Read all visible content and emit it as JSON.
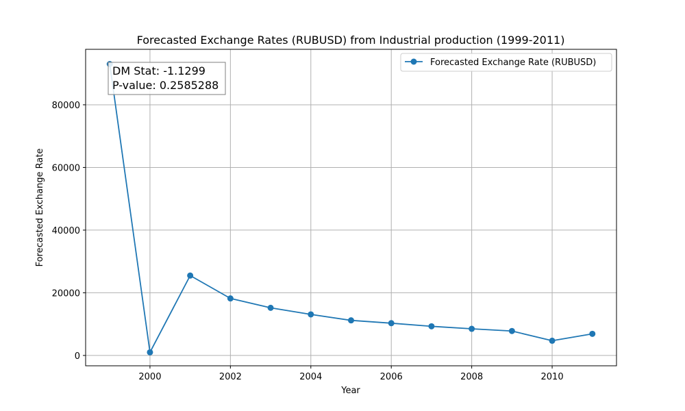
{
  "chart_data": {
    "type": "line",
    "title": "Forecasted Exchange Rates (RUBUSD) from Industrial production (1999-2011)",
    "xlabel": "Year",
    "ylabel": "Forecasted Exchange Rate",
    "x": [
      1999,
      2000,
      2001,
      2002,
      2003,
      2004,
      2005,
      2006,
      2007,
      2008,
      2009,
      2010,
      2011
    ],
    "series": [
      {
        "name": "Forecasted Exchange Rate (RUBUSD)",
        "values": [
          93000,
          1000,
          25500,
          18200,
          15200,
          13100,
          11200,
          10300,
          9300,
          8500,
          7800,
          4700,
          6900
        ],
        "color": "#1f77b4",
        "marker": "circle"
      }
    ],
    "xlim": [
      1998.4,
      2011.6
    ],
    "ylim": [
      -3300,
      97700
    ],
    "xticks": [
      2000,
      2002,
      2004,
      2006,
      2008,
      2010
    ],
    "yticks": [
      0,
      20000,
      40000,
      60000,
      80000
    ],
    "xtick_labels": [
      "2000",
      "2002",
      "2004",
      "2006",
      "2008",
      "2010"
    ],
    "ytick_labels": [
      "0",
      "20000",
      "40000",
      "60000",
      "80000"
    ],
    "grid": true,
    "legend_position": "top-right",
    "annotation": {
      "lines": [
        "DM Stat: -1.1299",
        "P-value: 0.2585288"
      ],
      "position": "top-left"
    }
  }
}
